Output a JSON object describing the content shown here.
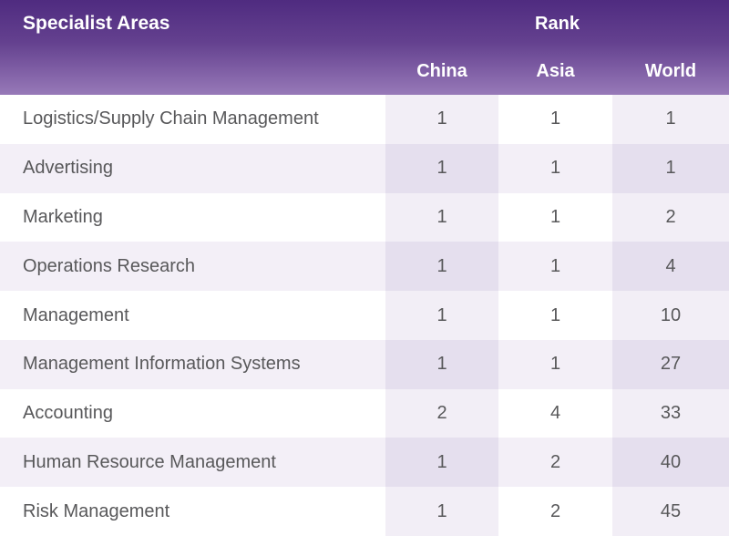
{
  "table": {
    "header": {
      "specialist_areas": "Specialist Areas",
      "rank": "Rank",
      "columns": [
        "China",
        "Asia",
        "World"
      ]
    },
    "rows": [
      {
        "area": "Logistics/Supply Chain Management",
        "china": "1",
        "asia": "1",
        "world": "1"
      },
      {
        "area": "Advertising",
        "china": "1",
        "asia": "1",
        "world": "1"
      },
      {
        "area": "Marketing",
        "china": "1",
        "asia": "1",
        "world": "2"
      },
      {
        "area": "Operations Research",
        "china": "1",
        "asia": "1",
        "world": "4"
      },
      {
        "area": "Management",
        "china": "1",
        "asia": "1",
        "world": "10"
      },
      {
        "area": "Management Information Systems",
        "china": "1",
        "asia": "1",
        "world": "27"
      },
      {
        "area": "Accounting",
        "china": "2",
        "asia": "4",
        "world": "33"
      },
      {
        "area": "Human Resource Management",
        "china": "1",
        "asia": "2",
        "world": "40"
      },
      {
        "area": "Risk Management",
        "china": "1",
        "asia": "2",
        "world": "45"
      }
    ]
  },
  "colors": {
    "header_gradient_top": "#4f2b80",
    "header_gradient_bottom": "#9779b8",
    "header_text": "#ffffff",
    "body_text": "#58585a",
    "row_white": "#ffffff",
    "row_lavender": "#f3eff7",
    "tint_on_white": "#f2eef6",
    "tint_on_lavender": "#e5dfee"
  }
}
